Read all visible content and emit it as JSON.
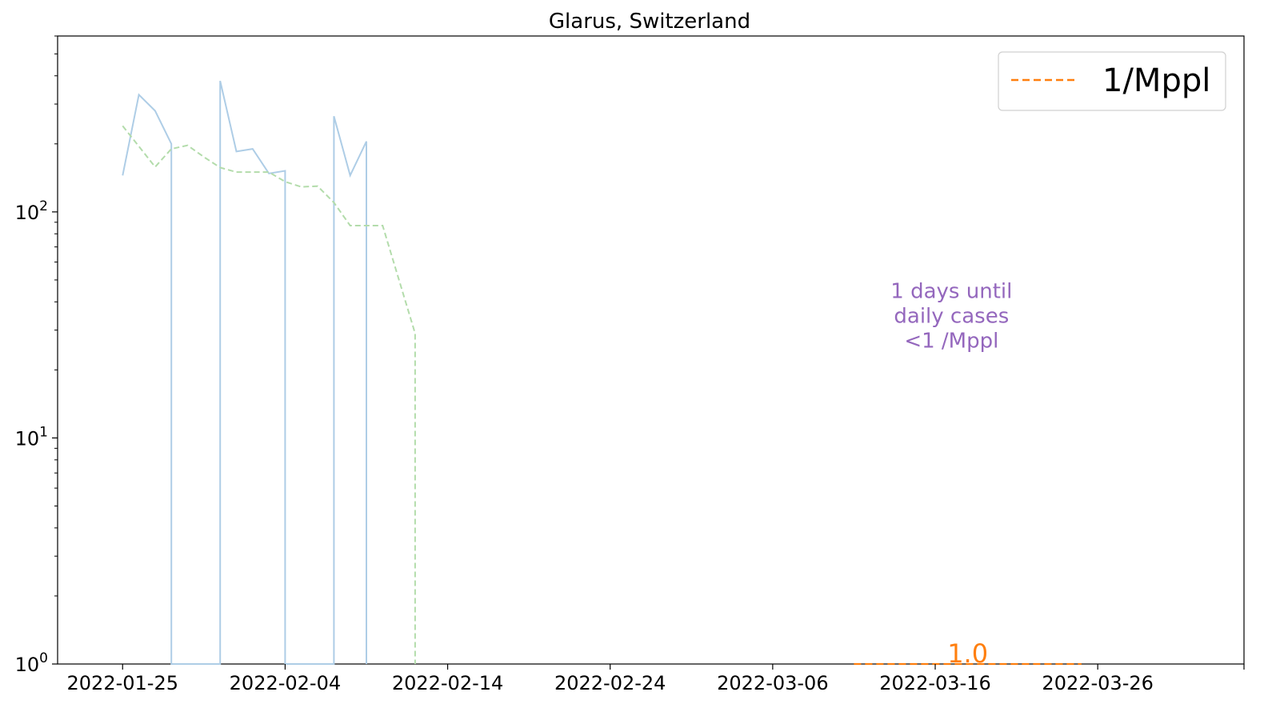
{
  "chart_data": {
    "type": "line",
    "title": "Glarus, Switzerland",
    "xlabel": "",
    "ylabel": "",
    "yscale": "log",
    "ylim": [
      1,
      600
    ],
    "xlim": [
      "2022-01-21",
      "2022-04-04"
    ],
    "x_ticks": [
      "2022-01-25",
      "2022-02-04",
      "2022-02-14",
      "2022-02-24",
      "2022-03-06",
      "2022-03-16",
      "2022-03-26",
      "2022-04-04"
    ],
    "y_ticks": [
      {
        "value": 1,
        "base": "10",
        "exp": "0"
      },
      {
        "value": 10,
        "base": "10",
        "exp": "1"
      },
      {
        "value": 100,
        "base": "10",
        "exp": "2"
      }
    ],
    "grid": false,
    "legend_position": "top-right",
    "series": [
      {
        "key": "daily",
        "style": "solid",
        "color": "#aecde6",
        "points": [
          [
            "2022-01-25",
            145
          ],
          [
            "2022-01-26",
            330
          ],
          [
            "2022-01-27",
            280
          ],
          [
            "2022-01-28",
            200
          ],
          [
            "2022-01-28",
            1
          ],
          [
            "2022-01-31",
            1
          ],
          [
            "2022-01-31",
            380
          ],
          [
            "2022-02-01",
            185
          ],
          [
            "2022-02-02",
            190
          ],
          [
            "2022-02-03",
            148
          ],
          [
            "2022-02-04",
            152
          ],
          [
            "2022-02-04",
            1
          ],
          [
            "2022-02-07",
            1
          ],
          [
            "2022-02-07",
            265
          ],
          [
            "2022-02-08",
            145
          ],
          [
            "2022-02-09",
            205
          ],
          [
            "2022-02-09",
            1
          ]
        ]
      },
      {
        "key": "average",
        "style": "dashed",
        "color": "#b3dcab",
        "points": [
          [
            "2022-01-25",
            240
          ],
          [
            "2022-01-26",
            195
          ],
          [
            "2022-01-27",
            158
          ],
          [
            "2022-01-28",
            190
          ],
          [
            "2022-01-29",
            197
          ],
          [
            "2022-01-30",
            175
          ],
          [
            "2022-01-31",
            157
          ],
          [
            "2022-02-01",
            150
          ],
          [
            "2022-02-02",
            150
          ],
          [
            "2022-02-03",
            150
          ],
          [
            "2022-02-04",
            136
          ],
          [
            "2022-02-05",
            129
          ],
          [
            "2022-02-06",
            130
          ],
          [
            "2022-02-07",
            110
          ],
          [
            "2022-02-08",
            87
          ],
          [
            "2022-02-09",
            87
          ],
          [
            "2022-02-10",
            87
          ],
          [
            "2022-02-12",
            29
          ],
          [
            "2022-02-12",
            1
          ]
        ]
      },
      {
        "key": "threshold",
        "name": "1/Mppl",
        "style": "dashed",
        "color": "#ff7f0e",
        "points": [
          [
            "2022-03-11",
            1
          ],
          [
            "2022-03-25",
            1
          ]
        ]
      }
    ],
    "annotations": [
      {
        "key": "days_until",
        "lines": [
          "1 days until",
          "daily cases",
          "<1 /Mppl"
        ],
        "color": "#9467bd",
        "x": "2022-03-17",
        "y": 30
      },
      {
        "key": "threshold_value",
        "text": "1.0",
        "color": "#ff7f0e",
        "x": "2022-03-18",
        "y": 1
      }
    ]
  }
}
